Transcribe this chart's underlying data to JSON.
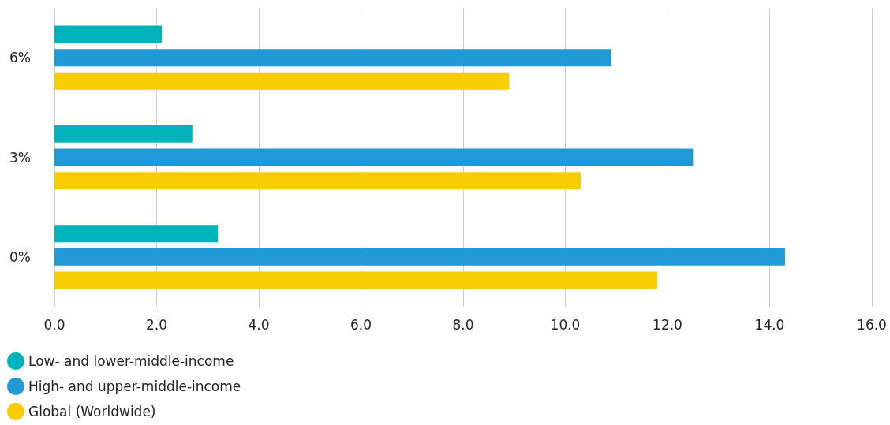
{
  "chart_data": {
    "type": "bar",
    "orientation": "horizontal",
    "categories": [
      "6%",
      "3%",
      "0%"
    ],
    "series": [
      {
        "name": "Low- and lower-middle-income",
        "color": "#00b2bb",
        "values": [
          2.1,
          2.7,
          3.2
        ]
      },
      {
        "name": "High- and upper-middle-income",
        "color": "#2199d6",
        "values": [
          10.9,
          12.5,
          14.3
        ]
      },
      {
        "name": "Global (Worldwide)",
        "color": "#f7cd00",
        "values": [
          8.9,
          10.3,
          11.8
        ]
      }
    ],
    "xlim": [
      0,
      16
    ],
    "xticks": [
      {
        "value": 0,
        "label": "0.0"
      },
      {
        "value": 2,
        "label": "2.0"
      },
      {
        "value": 4,
        "label": "4.0"
      },
      {
        "value": 6,
        "label": "6.0"
      },
      {
        "value": 8,
        "label": "8.0"
      },
      {
        "value": 10,
        "label": "10.0"
      },
      {
        "value": 12,
        "label": "12.0"
      },
      {
        "value": 14,
        "label": "14.0"
      },
      {
        "value": 16,
        "label": "16.0"
      }
    ],
    "grid": "x",
    "legend": "bottom left"
  }
}
